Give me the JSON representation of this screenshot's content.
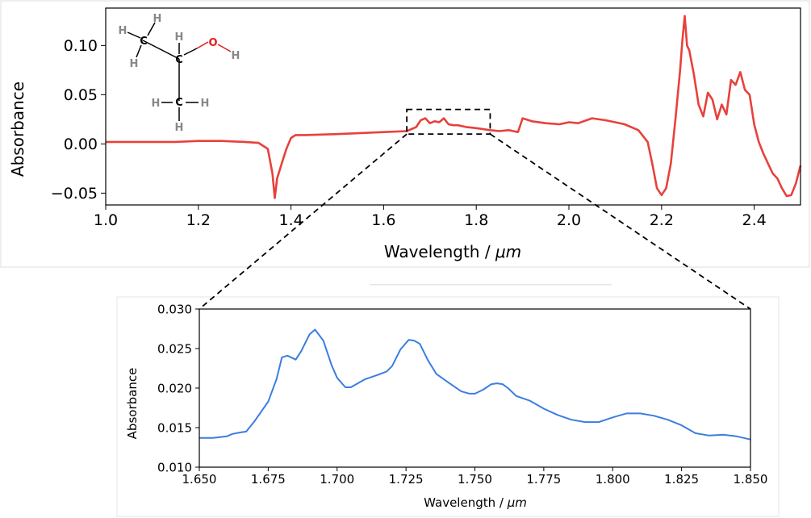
{
  "molecule": {
    "carbon_label": "C",
    "hydrogen_label": "H",
    "oxygen_label": "O",
    "oxygen_color": "#e41a1c",
    "hydrogen_color": "#888888",
    "carbon_color": "#000000"
  },
  "chart_data": [
    {
      "type": "line",
      "xlabel_plain": "Wavelength / ",
      "xlabel_italic": "μm",
      "ylabel": "Absorbance",
      "xlim": [
        1.0,
        2.5
      ],
      "ylim": [
        -0.062,
        0.138
      ],
      "xticks": [
        1.0,
        1.2,
        1.4,
        1.6,
        1.8,
        2.0,
        2.2,
        2.4
      ],
      "xtick_labels": [
        "1.0",
        "1.2",
        "1.4",
        "1.6",
        "1.8",
        "2.0",
        "2.2",
        "2.4"
      ],
      "yticks": [
        -0.05,
        0.0,
        0.05,
        0.1
      ],
      "ytick_labels": [
        "−0.05",
        "0.00",
        "0.05",
        "0.10"
      ],
      "color": "#e8413c",
      "zoom_box": {
        "x": [
          1.65,
          1.83
        ],
        "y": [
          0.01,
          0.035
        ]
      },
      "series": [
        {
          "x": [
            1.0,
            1.05,
            1.1,
            1.15,
            1.2,
            1.25,
            1.3,
            1.33,
            1.35,
            1.36,
            1.365,
            1.37,
            1.38,
            1.39,
            1.4,
            1.41,
            1.43,
            1.5,
            1.55,
            1.6,
            1.65,
            1.67,
            1.68,
            1.69,
            1.7,
            1.71,
            1.72,
            1.73,
            1.74,
            1.75,
            1.76,
            1.78,
            1.8,
            1.83,
            1.85,
            1.87,
            1.88,
            1.89,
            1.9,
            1.92,
            1.95,
            1.98,
            2.0,
            2.02,
            2.05,
            2.08,
            2.1,
            2.12,
            2.15,
            2.17,
            2.18,
            2.19,
            2.2,
            2.21,
            2.22,
            2.23,
            2.24,
            2.245,
            2.25,
            2.255,
            2.26,
            2.27,
            2.28,
            2.29,
            2.3,
            2.31,
            2.32,
            2.33,
            2.34,
            2.35,
            2.36,
            2.37,
            2.38,
            2.39,
            2.4,
            2.41,
            2.42,
            2.43,
            2.44,
            2.45,
            2.46,
            2.47,
            2.48,
            2.49,
            2.5
          ],
          "y": [
            0.002,
            0.002,
            0.002,
            0.002,
            0.003,
            0.003,
            0.002,
            0.001,
            -0.005,
            -0.03,
            -0.055,
            -0.035,
            -0.02,
            -0.005,
            0.006,
            0.009,
            0.009,
            0.01,
            0.011,
            0.012,
            0.013,
            0.017,
            0.024,
            0.026,
            0.021,
            0.023,
            0.022,
            0.026,
            0.02,
            0.019,
            0.019,
            0.017,
            0.016,
            0.014,
            0.013,
            0.014,
            0.013,
            0.012,
            0.026,
            0.023,
            0.021,
            0.02,
            0.022,
            0.021,
            0.026,
            0.024,
            0.022,
            0.02,
            0.014,
            0.002,
            -0.02,
            -0.045,
            -0.052,
            -0.045,
            -0.02,
            0.025,
            0.075,
            0.105,
            0.13,
            0.1,
            0.095,
            0.07,
            0.04,
            0.028,
            0.052,
            0.045,
            0.025,
            0.04,
            0.03,
            0.065,
            0.06,
            0.073,
            0.055,
            0.05,
            0.02,
            0.002,
            -0.01,
            -0.02,
            -0.03,
            -0.035,
            -0.045,
            -0.053,
            -0.052,
            -0.04,
            -0.022
          ]
        }
      ]
    },
    {
      "type": "line",
      "xlabel_plain": "Wavelength / ",
      "xlabel_italic": "μm",
      "ylabel": "Absorbance",
      "xlim": [
        1.65,
        1.85
      ],
      "ylim": [
        0.01,
        0.03
      ],
      "xticks": [
        1.65,
        1.675,
        1.7,
        1.725,
        1.75,
        1.775,
        1.8,
        1.825,
        1.85
      ],
      "xtick_labels": [
        "1.650",
        "1.675",
        "1.700",
        "1.725",
        "1.750",
        "1.775",
        "1.800",
        "1.825",
        "1.850"
      ],
      "yticks": [
        0.01,
        0.015,
        0.02,
        0.025,
        0.03
      ],
      "ytick_labels": [
        "0.010",
        "0.015",
        "0.020",
        "0.025",
        "0.030"
      ],
      "color": "#3b7de1",
      "series": [
        {
          "x": [
            1.65,
            1.655,
            1.66,
            1.662,
            1.665,
            1.667,
            1.67,
            1.675,
            1.678,
            1.68,
            1.682,
            1.685,
            1.687,
            1.69,
            1.692,
            1.695,
            1.698,
            1.7,
            1.703,
            1.705,
            1.71,
            1.715,
            1.718,
            1.72,
            1.723,
            1.726,
            1.728,
            1.73,
            1.733,
            1.736,
            1.74,
            1.745,
            1.748,
            1.75,
            1.753,
            1.756,
            1.758,
            1.76,
            1.762,
            1.765,
            1.77,
            1.775,
            1.78,
            1.785,
            1.79,
            1.795,
            1.8,
            1.805,
            1.81,
            1.815,
            1.82,
            1.825,
            1.83,
            1.835,
            1.84,
            1.845,
            1.85
          ],
          "y": [
            0.0137,
            0.0137,
            0.0139,
            0.0142,
            0.0144,
            0.0145,
            0.0158,
            0.0183,
            0.0211,
            0.0239,
            0.0241,
            0.0236,
            0.0247,
            0.0268,
            0.0274,
            0.026,
            0.0229,
            0.0213,
            0.0201,
            0.0201,
            0.0211,
            0.0217,
            0.0221,
            0.0228,
            0.0249,
            0.0261,
            0.026,
            0.0256,
            0.0235,
            0.0218,
            0.0208,
            0.0196,
            0.0193,
            0.0193,
            0.0198,
            0.0205,
            0.0206,
            0.0205,
            0.02,
            0.019,
            0.0184,
            0.0174,
            0.0166,
            0.016,
            0.0157,
            0.0157,
            0.0163,
            0.0168,
            0.0168,
            0.0165,
            0.016,
            0.0153,
            0.0143,
            0.014,
            0.0141,
            0.0139,
            0.0135
          ]
        }
      ]
    }
  ]
}
